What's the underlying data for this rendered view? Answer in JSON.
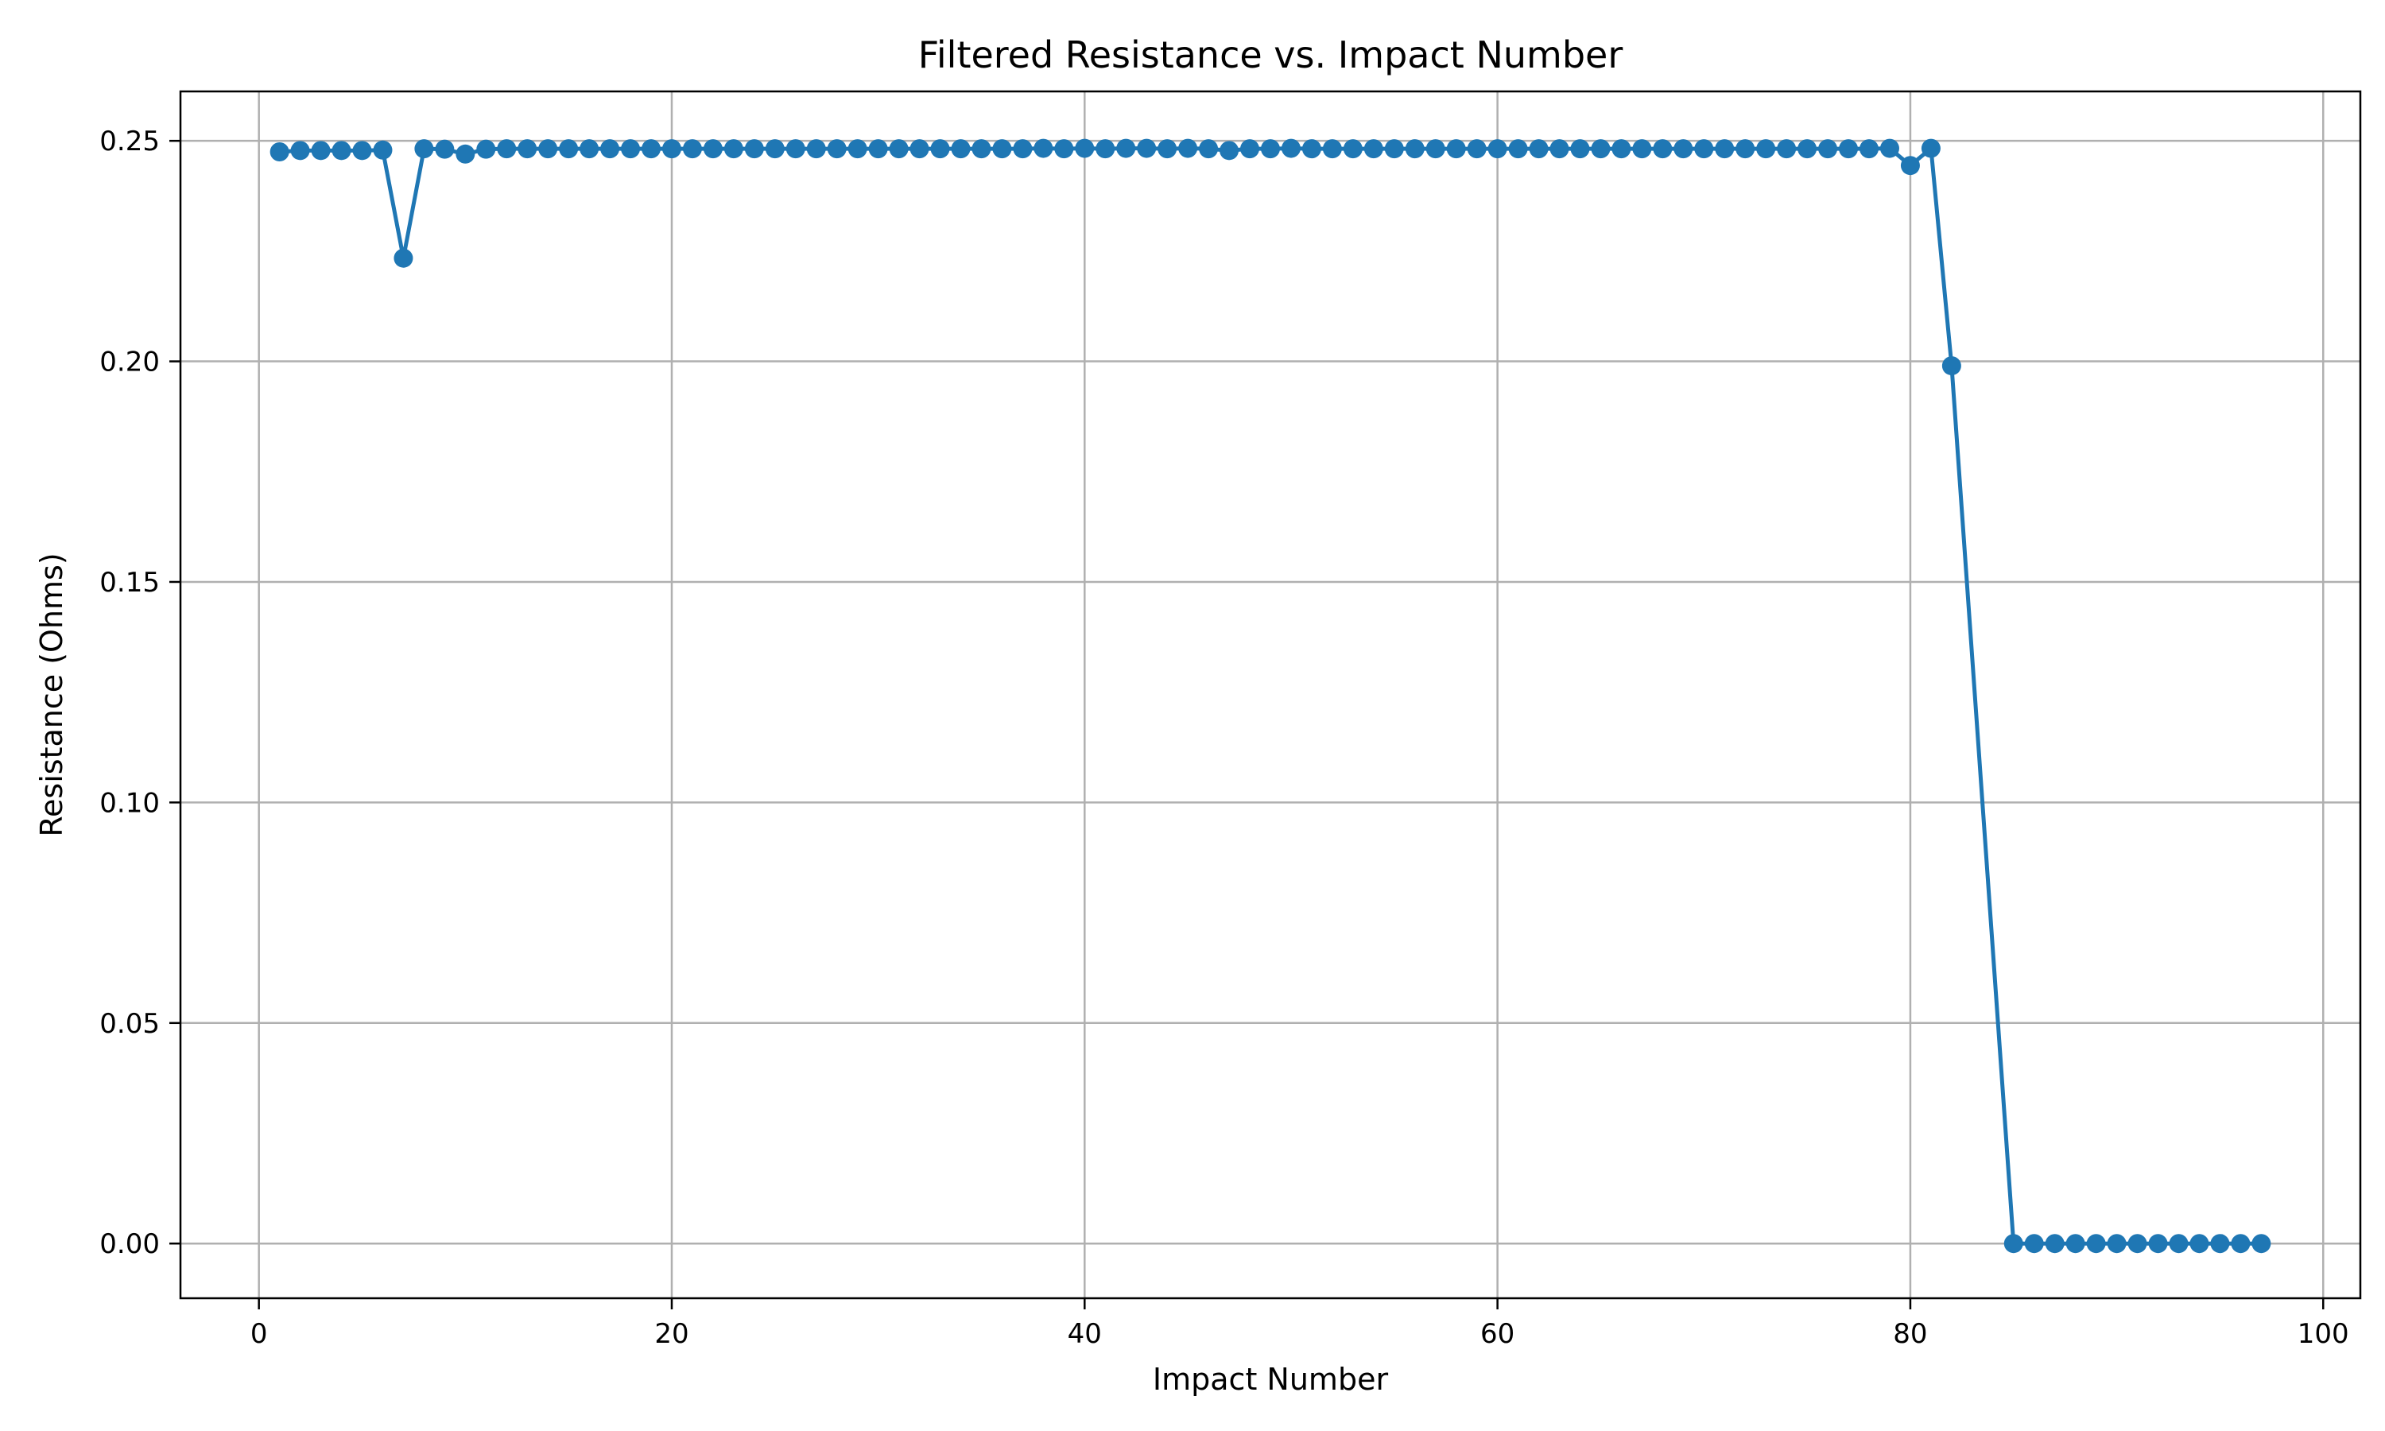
{
  "chart_data": {
    "type": "line",
    "title": "Filtered Resistance vs. Impact Number",
    "xlabel": "Impact Number",
    "ylabel": "Resistance (Ohms)",
    "xlim": [
      -3.8,
      101.8
    ],
    "ylim": [
      -0.0124,
      0.2612
    ],
    "xticks": [
      0,
      20,
      40,
      60,
      80,
      100
    ],
    "xtick_labels": [
      "0",
      "20",
      "40",
      "60",
      "80",
      "100"
    ],
    "yticks": [
      0.0,
      0.05,
      0.1,
      0.15,
      0.2,
      0.25
    ],
    "ytick_labels": [
      "0.00",
      "0.05",
      "0.10",
      "0.15",
      "0.20",
      "0.25"
    ],
    "grid": true,
    "legend": "none",
    "marker": "circle",
    "color": "#1f77b4",
    "series": [
      {
        "x": [
          1,
          2,
          3,
          4,
          5,
          6,
          7,
          8,
          9,
          10,
          11,
          12,
          13,
          14,
          15,
          16,
          17,
          18,
          19,
          20,
          21,
          22,
          23,
          24,
          25,
          26,
          27,
          28,
          29,
          30,
          31,
          32,
          33,
          34,
          35,
          36,
          37,
          38,
          39,
          40,
          41,
          42,
          43,
          44,
          45,
          46,
          47,
          48,
          49,
          50,
          51,
          52,
          53,
          54,
          55,
          56,
          57,
          58,
          59,
          60,
          61,
          62,
          63,
          64,
          65,
          66,
          67,
          68,
          69,
          70,
          71,
          72,
          73,
          74,
          75,
          76,
          77,
          78,
          79,
          80,
          81,
          82,
          85,
          86,
          87,
          88,
          89,
          90,
          91,
          92,
          93,
          94,
          95,
          96,
          97
        ],
        "y": [
          0.2475,
          0.2478,
          0.2478,
          0.2478,
          0.2478,
          0.2479,
          0.2234,
          0.2482,
          0.2481,
          0.247,
          0.2481,
          0.2482,
          0.2482,
          0.2482,
          0.2482,
          0.2482,
          0.2482,
          0.2482,
          0.2482,
          0.2482,
          0.2482,
          0.2482,
          0.2482,
          0.2482,
          0.2482,
          0.2482,
          0.2482,
          0.2482,
          0.2482,
          0.2482,
          0.2482,
          0.2482,
          0.2482,
          0.2482,
          0.2482,
          0.2482,
          0.2482,
          0.2483,
          0.2482,
          0.2483,
          0.2482,
          0.2483,
          0.2483,
          0.2482,
          0.2483,
          0.2482,
          0.2478,
          0.2482,
          0.2482,
          0.2483,
          0.2482,
          0.2482,
          0.2482,
          0.2482,
          0.2482,
          0.2482,
          0.2482,
          0.2482,
          0.2482,
          0.2482,
          0.2482,
          0.2482,
          0.2482,
          0.2482,
          0.2482,
          0.2482,
          0.2482,
          0.2482,
          0.2482,
          0.2482,
          0.2482,
          0.2482,
          0.2482,
          0.2482,
          0.2482,
          0.2482,
          0.2482,
          0.2482,
          0.2483,
          0.2444,
          0.2483,
          0.199,
          0.0,
          0.0,
          0.0,
          0.0,
          0.0,
          0.0,
          0.0,
          0.0,
          0.0,
          0.0,
          0.0,
          0.0,
          0.0
        ]
      }
    ]
  }
}
